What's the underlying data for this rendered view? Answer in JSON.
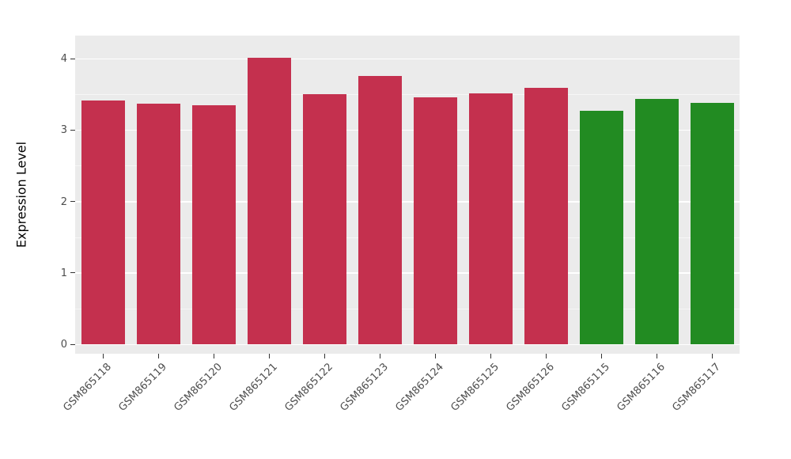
{
  "chart_data": {
    "type": "bar",
    "title": "",
    "xlabel": "",
    "ylabel": "Expression Level",
    "categories": [
      "GSM865118",
      "GSM865119",
      "GSM865120",
      "GSM865121",
      "GSM865122",
      "GSM865123",
      "GSM865124",
      "GSM865125",
      "GSM865126",
      "GSM865115",
      "GSM865116",
      "GSM865117"
    ],
    "values": [
      3.41,
      3.37,
      3.35,
      4.01,
      3.5,
      3.76,
      3.46,
      3.51,
      3.59,
      3.27,
      3.43,
      3.38
    ],
    "bar_colors": [
      "#C4304E",
      "#C4304E",
      "#C4304E",
      "#C4304E",
      "#C4304E",
      "#C4304E",
      "#C4304E",
      "#C4304E",
      "#C4304E",
      "#228B22",
      "#228B22",
      "#228B22"
    ],
    "group_colors": {
      "red_group": "#C4304E",
      "green_group": "#228B22"
    },
    "ylim": [
      0,
      4.3
    ],
    "yticks": [
      0,
      1,
      2,
      3,
      4
    ],
    "minor_yticks": [
      0.5,
      1.5,
      2.5,
      3.5
    ],
    "grid": true,
    "legend": "none",
    "panel_background": "#EBEBEB",
    "grid_color": "#FFFFFF",
    "tick_label_color": "#4D4D4D"
  }
}
